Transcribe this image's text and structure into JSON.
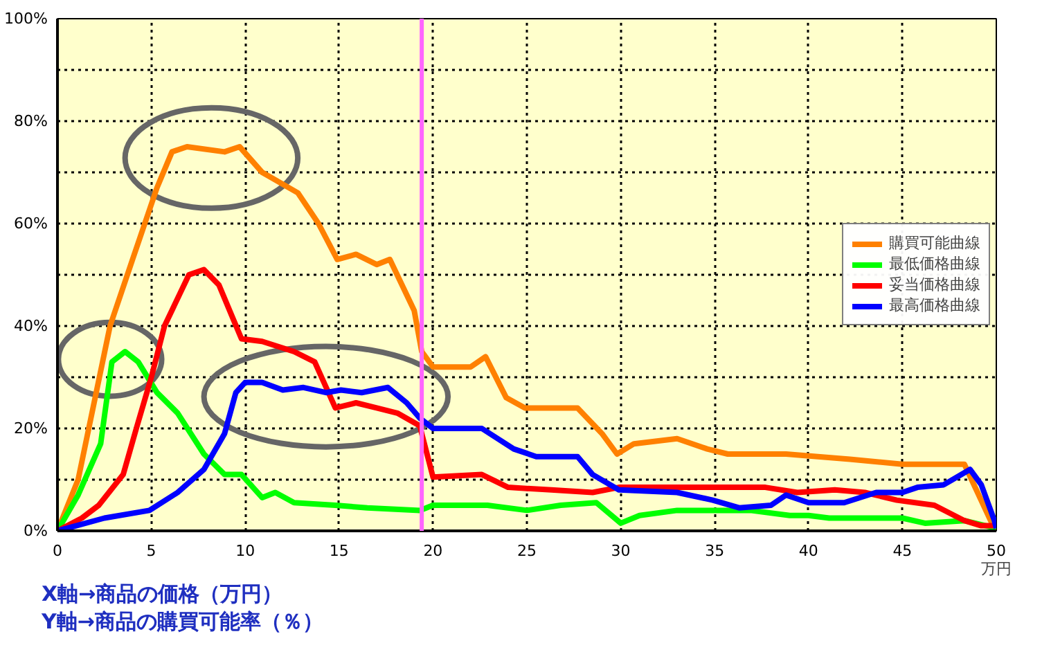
{
  "chart_data": {
    "type": "line",
    "xlabel": "万円",
    "annotations": [
      "X軸→商品の価格（万円）",
      "Y軸→商品の購買可能率（％）"
    ],
    "xlim": [
      0,
      50
    ],
    "ylim": [
      0,
      100
    ],
    "xticks": [
      0,
      5,
      10,
      15,
      20,
      25,
      30,
      35,
      40,
      45,
      50
    ],
    "yticks": [
      {
        "value": 0,
        "label": "0%"
      },
      {
        "value": 10,
        "label": null
      },
      {
        "value": 20,
        "label": "20%"
      },
      {
        "value": 30,
        "label": null
      },
      {
        "value": 40,
        "label": "40%"
      },
      {
        "value": 50,
        "label": null
      },
      {
        "value": 60,
        "label": "60%"
      },
      {
        "value": 70,
        "label": null
      },
      {
        "value": 80,
        "label": "80%"
      },
      {
        "value": 90,
        "label": null
      },
      {
        "value": 100,
        "label": "100%"
      }
    ],
    "grid": true,
    "legend": "right",
    "marker": "none",
    "line_style": "solid",
    "ref_lines": [
      {
        "axis": "x",
        "value": 19.4,
        "label": null,
        "color": "#ff66ff"
      }
    ],
    "series": [
      {
        "name": "購買可能曲線",
        "color": "#ff8000",
        "x": [
          0,
          1.1,
          2.8,
          4,
          5.3,
          6.1,
          6.9,
          8.9,
          9.7,
          10.9,
          12.8,
          13.9,
          14.9,
          15.9,
          17,
          17.7,
          19,
          19.4,
          20,
          22,
          22.8,
          23.9,
          24.9,
          27.7,
          29,
          29.8,
          30.7,
          33,
          34.6,
          35.7,
          38.8,
          42.2,
          45,
          48.3,
          49.7,
          50
        ],
        "values": [
          0,
          10,
          40,
          53,
          67,
          74,
          75,
          74,
          75,
          70,
          66,
          60,
          53,
          54,
          52,
          53,
          43,
          35,
          32,
          32,
          34,
          26,
          24,
          24,
          19,
          15,
          17,
          18,
          16,
          15,
          15,
          14,
          13,
          13,
          2,
          0
        ]
      },
      {
        "name": "最低価格曲線",
        "color": "#00ff00",
        "x": [
          0,
          1.1,
          2.3,
          2.9,
          3.6,
          4.3,
          5.3,
          6.4,
          7.8,
          8.9,
          9.8,
          10.9,
          11.6,
          12.6,
          14.8,
          16.5,
          19.3,
          20,
          22.9,
          25,
          26.8,
          28.7,
          30,
          31,
          33,
          36.9,
          39,
          40,
          41.1,
          45,
          46.2,
          48.3,
          50
        ],
        "values": [
          0,
          7,
          17,
          33,
          35,
          33,
          27,
          23,
          15,
          11,
          11,
          6.5,
          7.5,
          5.5,
          5,
          4.5,
          4,
          5,
          5,
          4,
          5,
          5.5,
          1.5,
          3,
          4,
          4,
          3,
          3,
          2.5,
          2.5,
          1.5,
          2,
          0.5
        ]
      },
      {
        "name": "妥当価格曲線",
        "color": "#ff0000",
        "x": [
          0,
          1.3,
          2.2,
          3.5,
          4.2,
          5,
          5.7,
          7,
          7.8,
          8.6,
          9.4,
          9.8,
          10.9,
          12.6,
          13.7,
          14.8,
          15.9,
          17,
          18.1,
          19.3,
          19.4,
          20,
          22.6,
          24,
          26.3,
          28.5,
          29.9,
          31,
          37.7,
          39.4,
          41.4,
          43,
          44.7,
          46.7,
          48.3,
          49.2,
          50
        ],
        "values": [
          0,
          2.5,
          5,
          11,
          20,
          30,
          40,
          50,
          51,
          48,
          41,
          37.5,
          37,
          35,
          33,
          24,
          25,
          24,
          23,
          20.5,
          19,
          10.5,
          11,
          8.5,
          8,
          7.5,
          8.5,
          8.5,
          8.5,
          7.5,
          8,
          7.5,
          6,
          5,
          2,
          1,
          1
        ]
      },
      {
        "name": "最高価格曲線",
        "color": "#0000ff",
        "x": [
          0,
          2.5,
          4.9,
          6.4,
          7.8,
          8.9,
          9.5,
          10,
          10.9,
          12,
          13.1,
          14.3,
          15.1,
          16.2,
          17.6,
          18.6,
          19.3,
          20,
          22.6,
          24.3,
          25.5,
          27.7,
          28.5,
          29.9,
          33,
          34.9,
          36.3,
          38,
          38.8,
          40,
          41.9,
          43.6,
          45,
          45.8,
          47.2,
          48.6,
          49.2,
          49.9,
          50
        ],
        "values": [
          0,
          2.5,
          4,
          7.5,
          12,
          19,
          27,
          29,
          29,
          27.5,
          28,
          27,
          27.5,
          27,
          28,
          25,
          22,
          20,
          20,
          16,
          14.5,
          14.5,
          11,
          8,
          7.5,
          6,
          4.5,
          5,
          7,
          5.5,
          5.5,
          7.5,
          7.5,
          8.5,
          9,
          12,
          9,
          2,
          0.5
        ]
      }
    ]
  }
}
